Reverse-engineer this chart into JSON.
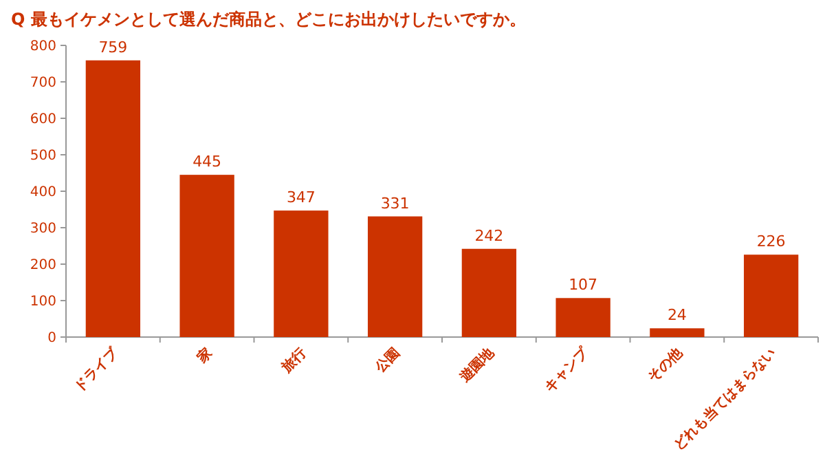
{
  "chart_data": {
    "type": "bar",
    "title": "Q 最もイケメンとして選んだ商品と、どこにお出かけしたいですか。",
    "categories": [
      "ドライブ",
      "家",
      "旅行",
      "公園",
      "遊園地",
      "キャンプ",
      "その他",
      "どれも当てはまらない"
    ],
    "values": [
      759,
      445,
      347,
      331,
      242,
      107,
      24,
      226
    ],
    "color": "#cc3300",
    "ylim": [
      0,
      800
    ],
    "yticks": [
      0,
      100,
      200,
      300,
      400,
      500,
      600,
      700,
      800
    ],
    "data_labels": true,
    "grid": false
  }
}
